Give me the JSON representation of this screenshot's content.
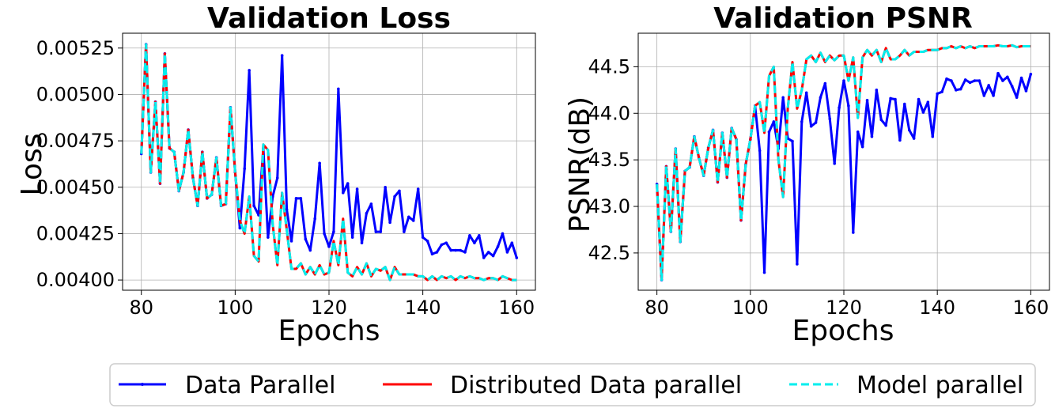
{
  "chart_data": [
    {
      "type": "line",
      "title": "Validation Loss",
      "xlabel": "Epochs",
      "ylabel": "Loss",
      "xlim": [
        76,
        164
      ],
      "ylim": [
        0.003945,
        0.00533
      ],
      "xticks": [
        "80",
        "100",
        "120",
        "140",
        "160"
      ],
      "xtick_values": [
        80,
        100,
        120,
        140,
        160
      ],
      "yticks": [
        "0.00400",
        "0.00425",
        "0.00450",
        "0.00475",
        "0.00500",
        "0.00525"
      ],
      "ytick_values": [
        0.004,
        0.00425,
        0.0045,
        0.00475,
        0.005,
        0.00525
      ],
      "grid": true,
      "x": [
        80,
        81,
        82,
        83,
        84,
        85,
        86,
        87,
        88,
        89,
        90,
        91,
        92,
        93,
        94,
        95,
        96,
        97,
        98,
        99,
        100,
        101,
        102,
        103,
        104,
        105,
        106,
        107,
        108,
        109,
        110,
        111,
        112,
        113,
        114,
        115,
        116,
        117,
        118,
        119,
        120,
        121,
        122,
        123,
        124,
        125,
        126,
        127,
        128,
        129,
        130,
        131,
        132,
        133,
        134,
        135,
        136,
        137,
        138,
        139,
        140,
        141,
        142,
        143,
        144,
        145,
        146,
        147,
        148,
        149,
        150,
        151,
        152,
        153,
        154,
        155,
        156,
        157,
        158,
        159,
        160
      ],
      "series": [
        {
          "name": "Data Parallel",
          "color": "#0000ff",
          "values": [
            0.00468,
            0.00527,
            0.00458,
            0.00496,
            0.00452,
            0.00522,
            0.00471,
            0.00469,
            0.00448,
            0.00458,
            0.00481,
            0.00455,
            0.0044,
            0.00469,
            0.00444,
            0.00446,
            0.00466,
            0.0044,
            0.00441,
            0.00493,
            0.00458,
            0.00428,
            0.0046,
            0.00513,
            0.0044,
            0.00435,
            0.00471,
            0.00423,
            0.00445,
            0.00455,
            0.00521,
            0.00438,
            0.00421,
            0.00444,
            0.00444,
            0.00422,
            0.00416,
            0.00433,
            0.00463,
            0.00425,
            0.00418,
            0.00426,
            0.00503,
            0.00447,
            0.00452,
            0.00423,
            0.00449,
            0.0042,
            0.00436,
            0.00441,
            0.00426,
            0.00426,
            0.0045,
            0.00431,
            0.00445,
            0.00448,
            0.00426,
            0.00434,
            0.00432,
            0.00449,
            0.00423,
            0.00421,
            0.00414,
            0.00415,
            0.00419,
            0.0042,
            0.00416,
            0.00416,
            0.00416,
            0.00415,
            0.00424,
            0.0042,
            0.00424,
            0.00412,
            0.00415,
            0.00413,
            0.00418,
            0.00425,
            0.00415,
            0.0042,
            0.00412
          ]
        },
        {
          "name": "Distributed Data parallel",
          "color": "#ff0000",
          "values": [
            0.00468,
            0.00527,
            0.00458,
            0.00496,
            0.00452,
            0.00522,
            0.00471,
            0.00469,
            0.00448,
            0.00458,
            0.00481,
            0.00455,
            0.0044,
            0.00469,
            0.00444,
            0.00446,
            0.00466,
            0.0044,
            0.00441,
            0.00493,
            0.00458,
            0.00432,
            0.00425,
            0.00445,
            0.00413,
            0.0041,
            0.00473,
            0.0047,
            0.0043,
            0.00408,
            0.00447,
            0.00427,
            0.00406,
            0.00406,
            0.00409,
            0.00403,
            0.00407,
            0.00403,
            0.00408,
            0.00403,
            0.00404,
            0.00421,
            0.00408,
            0.00433,
            0.00404,
            0.00402,
            0.00407,
            0.00403,
            0.00409,
            0.00402,
            0.00406,
            0.00405,
            0.00407,
            0.004,
            0.00407,
            0.00403,
            0.00403,
            0.00403,
            0.00403,
            0.00402,
            0.00402,
            0.004,
            0.00402,
            0.004,
            0.00402,
            0.00401,
            0.00402,
            0.004,
            0.00402,
            0.00401,
            0.00402,
            0.00401,
            0.00401,
            0.004,
            0.00401,
            0.00401,
            0.004,
            0.00402,
            0.00401,
            0.004,
            0.004
          ]
        },
        {
          "name": "Model parallel",
          "color": "#00eeee",
          "values": [
            0.00468,
            0.00527,
            0.00458,
            0.00496,
            0.00452,
            0.00522,
            0.00471,
            0.00469,
            0.00448,
            0.00458,
            0.00481,
            0.00455,
            0.0044,
            0.00469,
            0.00444,
            0.00446,
            0.00466,
            0.0044,
            0.00441,
            0.00493,
            0.00458,
            0.00432,
            0.00425,
            0.00445,
            0.00413,
            0.0041,
            0.00473,
            0.0047,
            0.0043,
            0.00408,
            0.00447,
            0.00427,
            0.00406,
            0.00406,
            0.00409,
            0.00403,
            0.00407,
            0.00403,
            0.00408,
            0.00403,
            0.00404,
            0.00421,
            0.00408,
            0.00433,
            0.00404,
            0.00402,
            0.00407,
            0.00403,
            0.00409,
            0.00402,
            0.00406,
            0.00405,
            0.00407,
            0.004,
            0.00407,
            0.00403,
            0.00403,
            0.00403,
            0.00403,
            0.00402,
            0.00402,
            0.004,
            0.00402,
            0.004,
            0.00402,
            0.00401,
            0.00402,
            0.004,
            0.00402,
            0.00401,
            0.00402,
            0.00401,
            0.00401,
            0.004,
            0.00401,
            0.00401,
            0.004,
            0.00402,
            0.00401,
            0.004,
            0.004
          ]
        }
      ]
    },
    {
      "type": "line",
      "title": "Validation PSNR",
      "xlabel": "Epochs",
      "ylabel": "PSNR(dB)",
      "xlim": [
        76,
        164
      ],
      "ylim": [
        42.1,
        44.86
      ],
      "xticks": [
        "80",
        "100",
        "120",
        "140",
        "160"
      ],
      "xtick_values": [
        80,
        100,
        120,
        140,
        160
      ],
      "yticks": [
        "42.5",
        "43.0",
        "43.5",
        "44.0",
        "44.5"
      ],
      "ytick_values": [
        42.5,
        43.0,
        43.5,
        44.0,
        44.5
      ],
      "grid": true,
      "x": [
        80,
        81,
        82,
        83,
        84,
        85,
        86,
        87,
        88,
        89,
        90,
        91,
        92,
        93,
        94,
        95,
        96,
        97,
        98,
        99,
        100,
        101,
        102,
        103,
        104,
        105,
        106,
        107,
        108,
        109,
        110,
        111,
        112,
        113,
        114,
        115,
        116,
        117,
        118,
        119,
        120,
        121,
        122,
        123,
        124,
        125,
        126,
        127,
        128,
        129,
        130,
        131,
        132,
        133,
        134,
        135,
        136,
        137,
        138,
        139,
        140,
        141,
        142,
        143,
        144,
        145,
        146,
        147,
        148,
        149,
        150,
        151,
        152,
        153,
        154,
        155,
        156,
        157,
        158,
        159,
        160
      ],
      "series": [
        {
          "name": "Data Parallel",
          "color": "#0000ff",
          "values": [
            43.24,
            42.21,
            43.43,
            42.73,
            43.62,
            42.62,
            43.38,
            43.42,
            43.75,
            43.52,
            43.33,
            43.63,
            43.82,
            43.26,
            43.79,
            43.31,
            43.84,
            43.72,
            42.85,
            43.45,
            43.72,
            44.08,
            43.6,
            42.29,
            43.8,
            43.91,
            43.62,
            44.17,
            43.73,
            43.7,
            42.38,
            43.91,
            44.22,
            43.86,
            43.9,
            44.17,
            44.32,
            43.94,
            43.46,
            44.06,
            44.35,
            44.08,
            42.72,
            43.8,
            43.64,
            44.14,
            43.75,
            44.25,
            43.93,
            43.87,
            44.16,
            44.15,
            43.71,
            44.1,
            43.82,
            43.73,
            44.15,
            44.01,
            44.12,
            43.75,
            44.21,
            44.23,
            44.37,
            44.35,
            44.25,
            44.26,
            44.36,
            44.33,
            44.35,
            44.35,
            44.19,
            44.3,
            44.19,
            44.43,
            44.35,
            44.39,
            44.29,
            44.17,
            44.38,
            44.24,
            44.42
          ]
        },
        {
          "name": "Distributed Data parallel",
          "color": "#ff0000",
          "values": [
            43.24,
            42.21,
            43.43,
            42.73,
            43.62,
            42.62,
            43.38,
            43.42,
            43.75,
            43.52,
            43.33,
            43.63,
            43.82,
            43.26,
            43.79,
            43.31,
            43.84,
            43.72,
            42.85,
            43.45,
            43.72,
            44.08,
            44.12,
            43.79,
            44.4,
            44.5,
            43.5,
            43.1,
            44.05,
            44.55,
            44.05,
            44.25,
            44.58,
            44.62,
            44.55,
            44.65,
            44.55,
            44.62,
            44.57,
            44.62,
            44.62,
            44.35,
            44.6,
            43.95,
            44.6,
            44.68,
            44.62,
            44.68,
            44.55,
            44.7,
            44.58,
            44.58,
            44.62,
            44.68,
            44.62,
            44.66,
            44.66,
            44.66,
            44.68,
            44.68,
            44.68,
            44.7,
            44.7,
            44.72,
            44.7,
            44.72,
            44.7,
            44.72,
            44.7,
            44.72,
            44.72,
            44.72,
            44.72,
            44.73,
            44.72,
            44.72,
            44.73,
            44.71,
            44.72,
            44.72,
            44.72
          ]
        },
        {
          "name": "Model parallel",
          "color": "#00eeee",
          "values": [
            43.24,
            42.21,
            43.43,
            42.73,
            43.62,
            42.62,
            43.38,
            43.42,
            43.75,
            43.52,
            43.33,
            43.63,
            43.82,
            43.26,
            43.79,
            43.31,
            43.84,
            43.72,
            42.85,
            43.45,
            43.72,
            44.08,
            44.12,
            43.79,
            44.4,
            44.5,
            43.5,
            43.1,
            44.05,
            44.55,
            44.05,
            44.25,
            44.58,
            44.62,
            44.55,
            44.65,
            44.55,
            44.62,
            44.57,
            44.62,
            44.62,
            44.35,
            44.6,
            43.95,
            44.6,
            44.68,
            44.62,
            44.68,
            44.55,
            44.7,
            44.58,
            44.58,
            44.62,
            44.68,
            44.62,
            44.66,
            44.66,
            44.66,
            44.68,
            44.68,
            44.68,
            44.7,
            44.7,
            44.72,
            44.7,
            44.72,
            44.7,
            44.72,
            44.7,
            44.72,
            44.72,
            44.72,
            44.72,
            44.73,
            44.72,
            44.72,
            44.73,
            44.71,
            44.72,
            44.72,
            44.72
          ]
        }
      ]
    }
  ],
  "legend": {
    "placement": "bottom-center",
    "items": [
      {
        "label": "Data Parallel",
        "color": "#0000ff",
        "style": "solid-marker"
      },
      {
        "label": "Distributed Data parallel",
        "color": "#ff0000",
        "style": "solid"
      },
      {
        "label": "Model parallel",
        "color": "#00eeee",
        "style": "dashed"
      }
    ]
  }
}
